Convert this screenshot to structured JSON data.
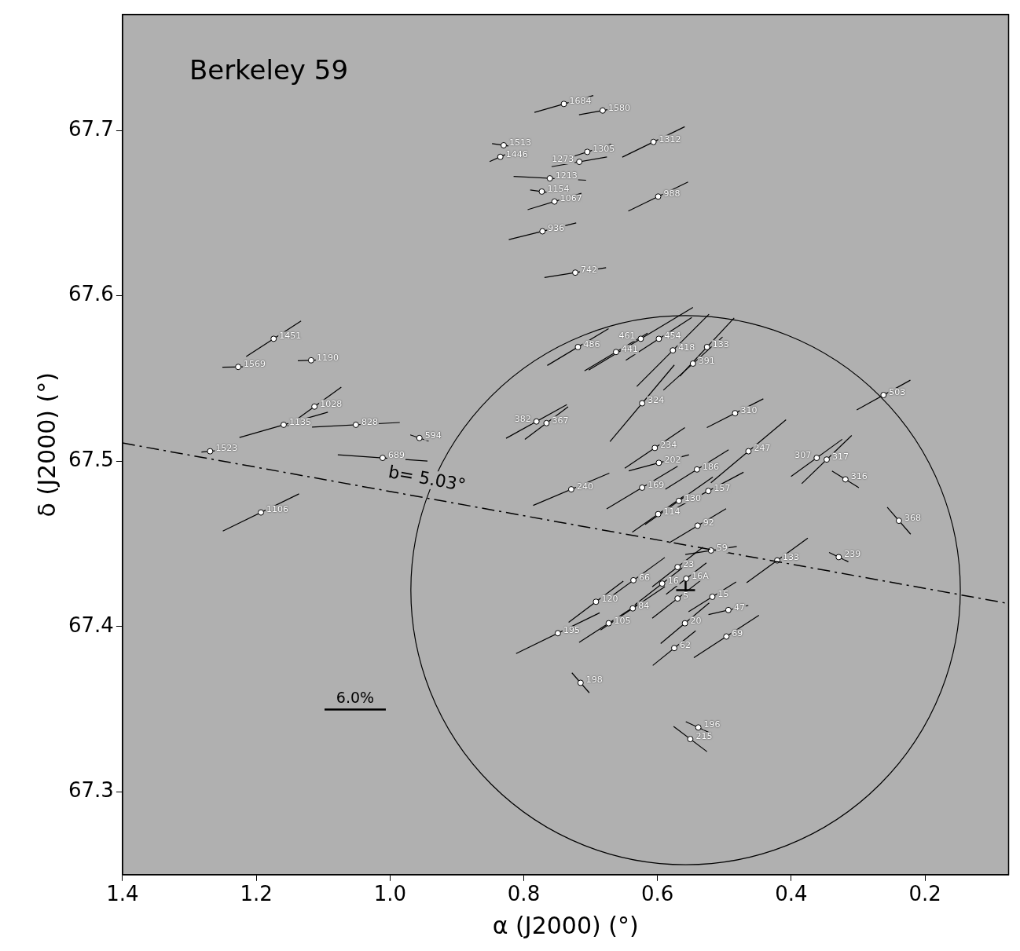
{
  "chart_data": {
    "type": "scatter",
    "title": "Berkeley 59",
    "x_label": "α (J2000) (°)",
    "y_label": "δ (J2000) (°)",
    "xlim": [
      1.4,
      0.075
    ],
    "ylim": [
      67.25,
      67.77
    ],
    "xticks": [
      1.4,
      1.2,
      {
        "value": 1,
        "label": "1.0"
      },
      0.8,
      0.6,
      0.4,
      0.2
    ],
    "yticks": [
      67.3,
      67.4,
      67.5,
      67.6,
      67.7
    ],
    "grid": false,
    "stars": {
      "marker": "circle",
      "labels": [
        "1684",
        "1580",
        "1513",
        "1446",
        "1305",
        "1273",
        "1312",
        "1213",
        "1154",
        "1067",
        "988",
        "936",
        "742",
        "1451",
        "1569",
        "1190",
        "1028",
        "1135",
        "828",
        "594",
        "1523",
        "689",
        "1106",
        "486",
        "461",
        "454",
        "441",
        "418",
        "133",
        "391",
        "324",
        "382",
        "367",
        "310",
        "503",
        "234",
        "247",
        "307",
        "317",
        "202",
        "186",
        "316",
        "240",
        "169",
        "157",
        "130",
        "114",
        "368",
        "92",
        "59",
        "133",
        "239",
        "23",
        "66",
        "16",
        "16A",
        "120",
        "5",
        "84",
        "15",
        "47",
        "105",
        "20",
        "195",
        "69",
        "62",
        "198",
        "196",
        "215"
      ],
      "ra": [
        0.74,
        0.682,
        0.83,
        0.835,
        0.705,
        0.717,
        0.606,
        0.761,
        0.773,
        0.754,
        0.599,
        0.772,
        0.723,
        1.174,
        1.227,
        1.118,
        1.113,
        1.159,
        1.051,
        0.956,
        1.269,
        1.011,
        1.193,
        0.719,
        0.625,
        0.598,
        0.662,
        0.577,
        0.526,
        0.547,
        0.623,
        0.781,
        0.766,
        0.484,
        0.262,
        0.604,
        0.464,
        0.362,
        0.347,
        0.598,
        0.541,
        0.319,
        0.729,
        0.623,
        0.524,
        0.568,
        0.599,
        0.239,
        0.54,
        0.52,
        0.421,
        0.329,
        0.57,
        0.636,
        0.593,
        0.557,
        0.692,
        0.57,
        0.637,
        0.518,
        0.494,
        0.673,
        0.559,
        0.749,
        0.497,
        0.575,
        0.715,
        0.539,
        0.551
      ],
      "dec": [
        67.716,
        67.712,
        67.691,
        67.684,
        67.687,
        67.681,
        67.693,
        67.671,
        67.663,
        67.657,
        67.66,
        67.639,
        67.614,
        67.574,
        67.557,
        67.561,
        67.533,
        67.522,
        67.522,
        67.514,
        67.506,
        67.502,
        67.469,
        67.569,
        67.574,
        67.574,
        67.566,
        67.567,
        67.569,
        67.559,
        67.535,
        67.524,
        67.523,
        67.529,
        67.54,
        67.508,
        67.506,
        67.502,
        67.501,
        67.499,
        67.495,
        67.489,
        67.483,
        67.484,
        67.482,
        67.476,
        67.468,
        67.464,
        67.461,
        67.446,
        67.44,
        67.442,
        67.436,
        67.428,
        67.426,
        67.429,
        67.415,
        67.417,
        67.411,
        67.418,
        67.41,
        67.402,
        67.402,
        67.396,
        67.394,
        67.387,
        67.366,
        67.339,
        67.332
      ],
      "polarization_percent": [
        6.0,
        4.7,
        2.3,
        2.3,
        4.9,
        5.5,
        6.8,
        7.1,
        2.3,
        5.5,
        6.5,
        6.8,
        6.1,
        6.4,
        3.1,
        2.6,
        6.5,
        9.0,
        8.6,
        1.9,
        1.7,
        8.8,
        8.3,
        7.0,
        11.9,
        7.7,
        7.2,
        10.0,
        7.8,
        7.8,
        9.8,
        6.8,
        5.3,
        6.2,
        6.0,
        7.1,
        9.6,
        6.2,
        6.8,
        6.1,
        7.3,
        3.1,
        8.1,
        8.1,
        7.8,
        8.1,
        6.2,
        3.5,
        6.5,
        5.1,
        7.4,
        2.1,
        6.3,
        7.6,
        6.8,
        5.0,
        6.7,
        6.3,
        7.6,
        5.5,
        4.0,
        6.9,
        6.2,
        9.1,
        7.6,
        5.4,
        2.6,
        2.7,
        4.1
      ],
      "position_angle_deg": [
        106,
        100,
        82,
        114,
        108,
        100,
        116,
        87,
        82,
        107,
        116,
        104,
        99,
        123,
        91,
        92,
        126,
        106,
        93,
        71,
        95,
        86,
        116,
        121,
        121,
        123,
        121,
        135,
        137,
        132,
        140,
        119,
        127,
        117,
        119,
        124,
        130,
        126,
        134,
        105,
        122,
        58,
        113,
        121,
        118,
        125,
        125,
        41,
        121,
        99,
        126,
        64,
        128,
        126,
        128,
        128,
        127,
        128,
        124,
        122,
        103,
        123,
        130,
        116,
        123,
        129,
        41,
        65,
        53
      ]
    },
    "cluster_center": {
      "ra": 0.558,
      "dec": 67.422,
      "marker": "cross"
    },
    "circle": {
      "ra": 0.558,
      "dec": 67.422,
      "radius_deg": 0.166
    },
    "galactic_latitude_line": {
      "label": "b= 5.03°",
      "ra": [
        1.4,
        0.076
      ],
      "dec": [
        67.511,
        67.414
      ],
      "line_style": "dashdot"
    },
    "scale_bar": {
      "label": "6.0%",
      "value": 6.0
    }
  }
}
